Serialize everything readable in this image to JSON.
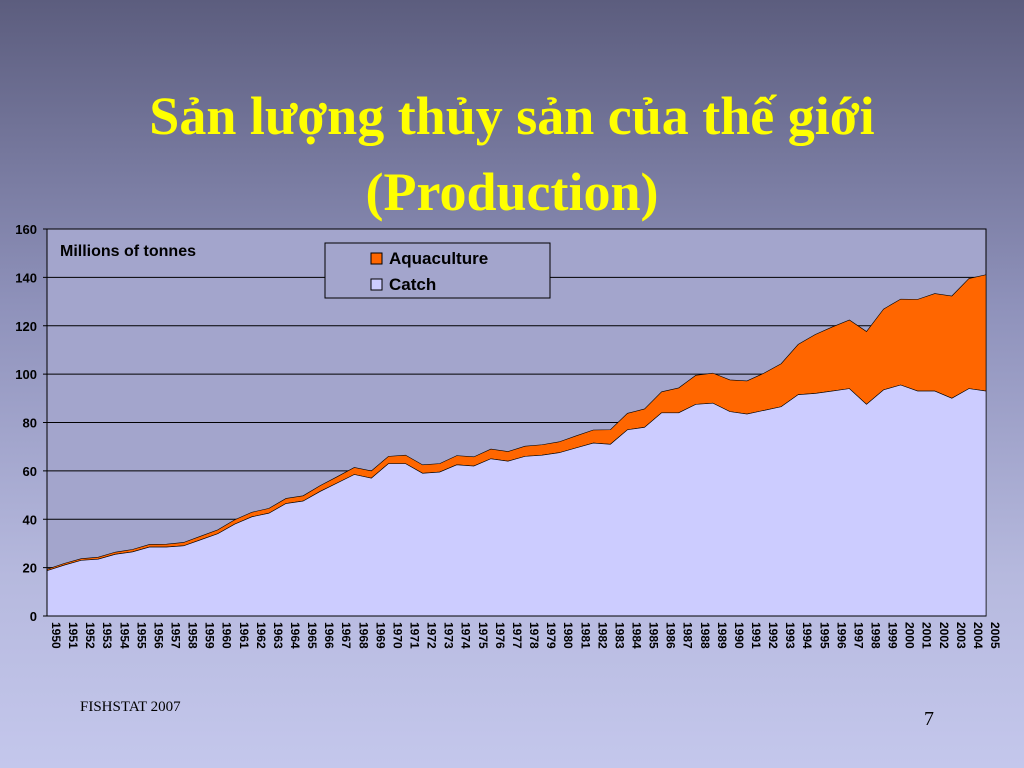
{
  "slide": {
    "title_line1": "Sản lượng thủy sản của thế giới",
    "title_line2": "(Production)",
    "source": "FISHSTAT 2007",
    "page_number": "7"
  },
  "colors": {
    "title": "#ffff00",
    "aquaculture": "#ff6600",
    "catch": "#ccccff",
    "plot_background": "#a3a5cc",
    "gridline": "#000000"
  },
  "chart_data": {
    "type": "area",
    "stacked": true,
    "annotation": "Millions of tonnes",
    "ylim": [
      0,
      160
    ],
    "yticks": [
      0,
      20,
      40,
      60,
      80,
      100,
      120,
      140,
      160
    ],
    "grid": true,
    "legend_position": "top-center",
    "x": [
      1950,
      1951,
      1952,
      1953,
      1954,
      1955,
      1956,
      1957,
      1958,
      1959,
      1960,
      1961,
      1962,
      1963,
      1964,
      1965,
      1966,
      1967,
      1968,
      1969,
      1970,
      1971,
      1972,
      1973,
      1974,
      1975,
      1976,
      1977,
      1978,
      1979,
      1980,
      1981,
      1982,
      1983,
      1984,
      1985,
      1986,
      1987,
      1988,
      1989,
      1990,
      1991,
      1992,
      1993,
      1994,
      1995,
      1996,
      1997,
      1998,
      1999,
      2000,
      2001,
      2002,
      2003,
      2004,
      2005
    ],
    "series": [
      {
        "name": "Catch",
        "color": "#ccccff",
        "values": [
          18.7,
          21,
          23,
          23.5,
          25.5,
          26.5,
          28.5,
          28.5,
          29,
          31.5,
          34,
          38,
          41,
          42.5,
          46.5,
          47.5,
          51.5,
          55,
          58.5,
          57,
          63,
          63,
          59,
          59.5,
          62.5,
          62,
          65,
          64,
          66,
          66.5,
          67.5,
          69.5,
          71.5,
          71,
          77,
          78,
          84,
          84,
          87.5,
          88,
          84.5,
          83.5,
          85,
          86.5,
          91.5,
          92,
          93,
          94,
          87.5,
          93.5,
          95.5,
          93,
          93,
          90,
          94,
          93
        ]
      },
      {
        "name": "Aquaculture",
        "color": "#ff6600",
        "values": [
          0.6,
          0.7,
          0.7,
          0.8,
          0.9,
          1.0,
          1.1,
          1.2,
          1.4,
          1.5,
          1.6,
          1.8,
          1.9,
          2.0,
          2.1,
          2.2,
          2.4,
          2.6,
          2.9,
          3.0,
          3.0,
          3.5,
          3.5,
          3.5,
          3.8,
          3.8,
          4.0,
          4.0,
          4.2,
          4.3,
          4.5,
          5.0,
          5.4,
          6.0,
          6.8,
          7.6,
          8.7,
          10.3,
          12.0,
          12.4,
          13.1,
          13.7,
          15.4,
          17.8,
          20.8,
          24.4,
          26.5,
          28.4,
          30.1,
          33.4,
          35.5,
          37.9,
          40.3,
          42.3,
          45.5,
          48.1
        ]
      }
    ]
  }
}
